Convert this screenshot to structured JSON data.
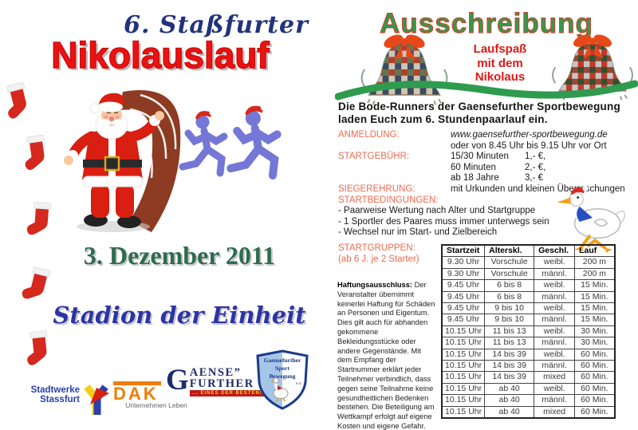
{
  "colors": {
    "title_red": "#ee1111",
    "subtitle_navy": "#21337d",
    "header_green": "#2e9b4e",
    "header_outline_red": "#e03522",
    "accent_salmon": "#ee6a4d",
    "caption_red": "#e01815",
    "date_green": "#2e6b52",
    "venue_blue": "#2c34a5",
    "wave_green": "#2e9b4e",
    "stocking_red": "#d5281e"
  },
  "icons": {
    "stocking-icon": "red christmas stocking with white cuff",
    "santa-illustration": "santa claus cartoon standing before a running track",
    "runners-illustration": "two purple runner silhouettes wearing santa hats",
    "bell-photo-collage": "bell-shaped photo collage with red bow",
    "goose-mascot-icon": "running goose with santa hat and blue scarf",
    "wave-divider": "green wavy divider line",
    "stadtwerke-logo-icon": "red/blue/yellow Y-shaped mark",
    "badge-shield-icon": "blue and white club shield with goose"
  },
  "left_panel": {
    "subtitle": "6. Staßfurter",
    "title": "Nikolauslauf",
    "date": "3. Dezember 2011",
    "venue": "Stadion der Einheit",
    "sponsors": {
      "stadtwerke_line1": "Stadtwerke",
      "stadtwerke_line2": "Stassfurt",
      "dak_name": "DAK",
      "dak_tagline": "Unternehmen Leben",
      "gaense_g": "G",
      "gaense_line1": "AENSE”",
      "gaense_line2": "FURTHER",
      "gaense_banner": "... EINES DER BESTEN!",
      "badge_line1": "Gaensefurther",
      "badge_line2": "Sport",
      "badge_line3": "Bewegung",
      "badge_ev": "e.V."
    }
  },
  "right_panel": {
    "header": "Ausschreibung",
    "bell_caption_lines": [
      "Laufspaß",
      "mit dem",
      "Nikolaus"
    ],
    "intro": "Die Bode-Runners der Gaensefurther Sportbewegung laden Euch zum 6. Stundenpaarlauf ein.",
    "anmeldung": {
      "label": "ANMELDUNG:",
      "url": "www.gaensefurther-sportbewegung.de",
      "line2": "oder von 8.45 Uhr bis 9.15 Uhr  vor Ort"
    },
    "startgebuehr": {
      "label": "STARTGEBÜHR:",
      "fees": [
        {
          "name": "15/30 Minuten",
          "price": "1,- €,"
        },
        {
          "name": "60 Minuten",
          "price": "2,- €,"
        },
        {
          "name": "ab 18 Jahre",
          "price": "3,- €"
        }
      ]
    },
    "siegerehrung": {
      "label": "SIEGEREHRUNG:",
      "text": "mit Urkunden und kleinen Überraschungen"
    },
    "startbedingungen": {
      "label": "STARTBEDINGUNGEN:",
      "items": [
        "- Paarweise Wertung nach Alter und Startgruppe",
        "- 1 Sportler des Paares muss immer unterwegs sein",
        "- Wechsel nur im Start- und Zielbereich"
      ]
    },
    "startgruppen": {
      "label": "STARTGRUPPEN:",
      "note": "(ab 6 J. je 2 Starter)"
    },
    "disclaimer": {
      "title": "Haftungsausschluss:",
      "text": " Der Veranstalter übernimmt keinerlei Haftung für Schäden an Personen und Eigentum. Dies gilt auch für abhanden gekommene Bekleidungsstücke oder andere Gegenstände. Mit dem Empfang der Startnummer erklärt jeder Teilnehmer verbindlich, dass gegen seine Teilnahme keine gesundheitlichen Bedenken bestehen. Die Beteiligung am Wettkampf erfolgt auf eigene Kosten und eigene Gefahr."
    },
    "table": {
      "headers": [
        "Startzeit",
        "Alterskl.",
        "Geschl.",
        "Lauf"
      ],
      "rows": [
        [
          "9.30 Uhr",
          "Vorschule",
          "weibl.",
          "200 m"
        ],
        [
          "9.30 Uhr",
          "Vorschule",
          "männl.",
          "200 m"
        ],
        [
          "9.45 Uhr",
          "6 bis 8",
          "weibl.",
          "15 Min."
        ],
        [
          "9.45 Uhr",
          "6 bis 8",
          "männl.",
          "15 Min."
        ],
        [
          "9.45 Uhr",
          "9 bis 10",
          "weibl.",
          "15 Min."
        ],
        [
          "9.45 Uhr",
          "9 bis 10",
          "männl.",
          "15 Min."
        ],
        [
          "10.15 Uhr",
          "11 bis 13",
          "weibl.",
          "30 Min."
        ],
        [
          "10.15 Uhr",
          "11 bis 13",
          "männl.",
          "30 Min."
        ],
        [
          "10.15 Uhr",
          "14 bis 39",
          "weibl.",
          "60 Min."
        ],
        [
          "10.15 Uhr",
          "14 bis 39",
          "männl.",
          "60 Min."
        ],
        [
          "10.15 Uhr",
          "14 bis 39",
          "mixed",
          "60 Min."
        ],
        [
          "10.15 Uhr",
          "ab 40",
          "weibl.",
          "60 Min."
        ],
        [
          "10.15 Uhr",
          "ab 40",
          "männl.",
          "60 Min."
        ],
        [
          "10.15 Uhr",
          "ab 40",
          "mixed",
          "60 Min."
        ]
      ]
    }
  }
}
